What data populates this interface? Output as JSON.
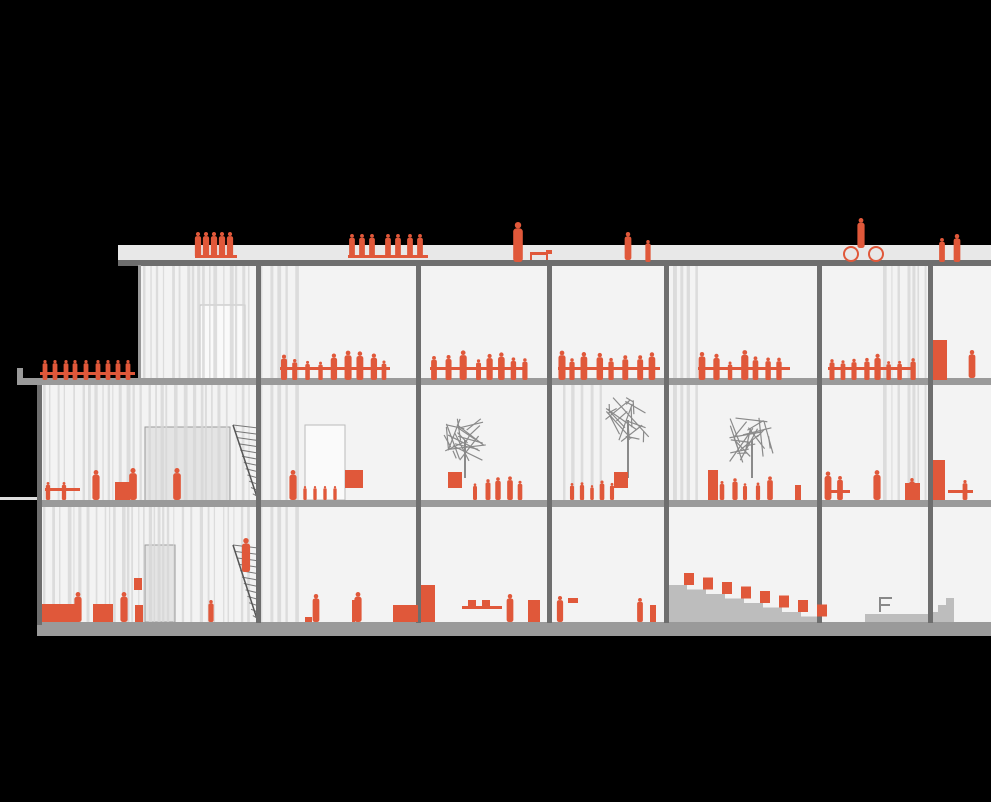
{
  "diagram": {
    "type": "architectural-section",
    "levels": 3,
    "colors": {
      "background": "#000000",
      "interior": "#f3f3f3",
      "stripe": "#d6d6d6",
      "structure": "#6e6e6e",
      "slab": "#9a9a9a",
      "roof": "#e8e8e8",
      "figures": "#e0583a",
      "trees": "#8a8a8a",
      "seating": "#bdbdbd"
    }
  }
}
